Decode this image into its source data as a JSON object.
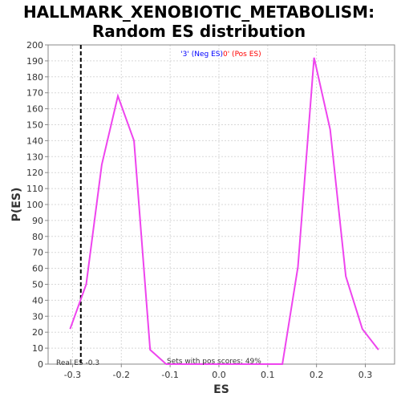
{
  "chart_data": {
    "type": "line",
    "title_line1": "HALLMARK_XENOBIOTIC_METABOLISM:",
    "title_line2": "Random ES distribution",
    "xlabel": "ES",
    "ylabel": "P(ES)",
    "xlim": [
      -0.35,
      0.36
    ],
    "ylim": [
      0,
      200
    ],
    "x_ticks": [
      -0.3,
      -0.2,
      -0.1,
      0.0,
      0.1,
      0.2,
      0.3
    ],
    "x_tick_labels": [
      "-0.3",
      "-0.2",
      "-0.1",
      "0.0",
      "0.1",
      "0.2",
      "0.3"
    ],
    "y_ticks": [
      0,
      10,
      20,
      30,
      40,
      50,
      60,
      70,
      80,
      90,
      100,
      110,
      120,
      130,
      140,
      150,
      160,
      170,
      180,
      190,
      200
    ],
    "grid": true,
    "series": [
      {
        "color": "#ee44ee",
        "x": [
          -0.305,
          -0.272,
          -0.24,
          -0.207,
          -0.174,
          -0.141,
          -0.108,
          -0.075,
          -0.042,
          -0.009,
          0.024,
          0.057,
          0.09,
          0.13,
          0.162,
          0.195,
          0.228,
          0.26,
          0.294,
          0.327
        ],
        "y": [
          22,
          50,
          125,
          168,
          140,
          9,
          0,
          0,
          0,
          0,
          0,
          0,
          0,
          0,
          61,
          192,
          147,
          55,
          22,
          9
        ]
      }
    ],
    "real_es": -0.283,
    "real_es_label": "Real ES -0.3",
    "pos_scores_label": "Sets with pos scores: 49%",
    "legend": {
      "neg_label": "'3' (Neg ES)",
      "neg_color": "#0000ff",
      "pos_label": "0' (Pos ES)",
      "pos_color": "#ff0000",
      "placement": "top-center"
    }
  }
}
